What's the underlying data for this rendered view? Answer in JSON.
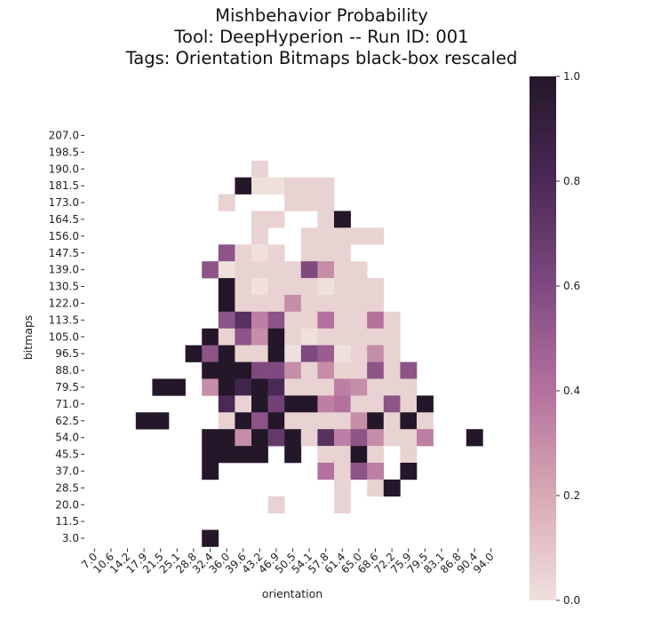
{
  "chart_data": {
    "type": "heatmap",
    "title": [
      "Mishbehavior Probability",
      "Tool: DeepHyperion -- Run ID: 001",
      "Tags: Orientation Bitmaps black-box rescaled"
    ],
    "xlabel": "orientation",
    "ylabel": "bitmaps",
    "x_ticks": [
      "7.0",
      "10.6",
      "14.2",
      "17.9",
      "21.5",
      "25.1",
      "28.8",
      "32.4",
      "36.0",
      "39.6",
      "43.2",
      "46.9",
      "50.5",
      "54.1",
      "57.8",
      "61.4",
      "65.0",
      "68.6",
      "72.2",
      "75.9",
      "79.5",
      "83.1",
      "86.8",
      "90.4",
      "94.0"
    ],
    "y_ticks": [
      "207.0",
      "198.5",
      "190.0",
      "181.5",
      "173.0",
      "164.5",
      "156.0",
      "147.5",
      "139.0",
      "130.5",
      "122.0",
      "113.5",
      "105.0",
      "96.5",
      "88.0",
      "79.5",
      "71.0",
      "62.5",
      "54.0",
      "45.5",
      "37.0",
      "28.5",
      "20.0",
      "11.5",
      "3.0"
    ],
    "colorbar": {
      "min": 0.0,
      "max": 1.0,
      "ticks": [
        0.0,
        0.2,
        0.4,
        0.6,
        0.8,
        1.0
      ],
      "tick_labels": [
        "0.0",
        "0.2",
        "0.4",
        "0.6",
        "0.8",
        "1.0"
      ],
      "colors": [
        "#efe0dc",
        "#d8a9b4",
        "#b4719d",
        "#7e4a80",
        "#4a2a55",
        "#231729"
      ]
    },
    "values": [
      [
        null,
        null,
        null,
        null,
        null,
        null,
        null,
        null,
        null,
        null,
        null,
        null,
        null,
        null,
        null,
        null,
        null,
        null,
        null,
        null,
        null,
        null,
        null,
        null,
        null
      ],
      [
        null,
        null,
        null,
        null,
        null,
        null,
        null,
        null,
        null,
        null,
        null,
        null,
        null,
        null,
        null,
        null,
        null,
        null,
        null,
        null,
        null,
        null,
        null,
        null,
        null
      ],
      [
        null,
        null,
        null,
        null,
        null,
        null,
        null,
        null,
        null,
        null,
        0.05,
        null,
        null,
        null,
        null,
        null,
        null,
        null,
        null,
        null,
        null,
        null,
        null,
        null,
        null
      ],
      [
        null,
        null,
        null,
        null,
        null,
        null,
        null,
        null,
        null,
        1.0,
        0.0,
        0.0,
        0.05,
        0.05,
        0.05,
        null,
        null,
        null,
        null,
        null,
        null,
        null,
        null,
        null,
        null
      ],
      [
        null,
        null,
        null,
        null,
        null,
        null,
        null,
        null,
        0.05,
        null,
        null,
        null,
        0.05,
        0.05,
        0.05,
        null,
        null,
        null,
        null,
        null,
        null,
        null,
        null,
        null,
        null
      ],
      [
        null,
        null,
        null,
        null,
        null,
        null,
        null,
        null,
        null,
        null,
        0.05,
        0.05,
        null,
        null,
        0.05,
        1.0,
        null,
        null,
        null,
        null,
        null,
        null,
        null,
        null,
        null
      ],
      [
        null,
        null,
        null,
        null,
        null,
        null,
        null,
        null,
        null,
        null,
        0.05,
        null,
        null,
        0.05,
        0.05,
        0.05,
        0.05,
        0.05,
        null,
        null,
        null,
        null,
        null,
        null,
        null
      ],
      [
        null,
        null,
        null,
        null,
        null,
        null,
        null,
        null,
        0.55,
        0.05,
        0.0,
        0.05,
        null,
        0.05,
        0.05,
        0.05,
        null,
        null,
        null,
        null,
        null,
        null,
        null,
        null,
        null
      ],
      [
        null,
        null,
        null,
        null,
        null,
        null,
        null,
        0.55,
        0.0,
        0.05,
        0.05,
        0.05,
        0.05,
        0.6,
        0.3,
        0.05,
        0.05,
        null,
        null,
        null,
        null,
        null,
        null,
        null,
        null
      ],
      [
        null,
        null,
        null,
        null,
        null,
        null,
        null,
        null,
        1.0,
        0.05,
        0.0,
        0.05,
        0.05,
        0.05,
        0.0,
        0.05,
        0.05,
        0.05,
        null,
        null,
        null,
        null,
        null,
        null,
        null
      ],
      [
        null,
        null,
        null,
        null,
        null,
        null,
        null,
        null,
        1.0,
        0.05,
        0.05,
        0.05,
        0.3,
        0.05,
        0.05,
        0.05,
        0.05,
        0.05,
        null,
        null,
        null,
        null,
        null,
        null,
        null
      ],
      [
        null,
        null,
        null,
        null,
        null,
        null,
        null,
        null,
        0.55,
        0.75,
        0.35,
        0.55,
        0.05,
        0.05,
        0.4,
        0.05,
        0.05,
        0.4,
        0.05,
        null,
        null,
        null,
        null,
        null,
        null
      ],
      [
        null,
        null,
        null,
        null,
        null,
        null,
        null,
        1.0,
        0.05,
        0.55,
        0.3,
        1.0,
        0.05,
        0.0,
        0.05,
        0.05,
        0.05,
        0.05,
        0.05,
        null,
        null,
        null,
        null,
        null,
        null
      ],
      [
        null,
        null,
        null,
        null,
        null,
        null,
        1.0,
        0.55,
        1.0,
        0.05,
        0.05,
        1.0,
        0.0,
        0.6,
        0.5,
        0.0,
        0.05,
        0.3,
        0.05,
        null,
        null,
        null,
        null,
        null,
        null
      ],
      [
        null,
        null,
        null,
        null,
        null,
        null,
        null,
        1.0,
        1.0,
        1.0,
        0.6,
        0.6,
        0.3,
        0.05,
        0.3,
        0.05,
        0.05,
        0.55,
        0.05,
        0.55,
        null,
        null,
        null,
        null,
        null
      ],
      [
        null,
        null,
        null,
        null,
        1.0,
        1.0,
        null,
        0.3,
        1.0,
        0.85,
        1.0,
        0.8,
        0.05,
        0.05,
        0.05,
        0.35,
        0.3,
        0.05,
        0.05,
        0.05,
        null,
        null,
        null,
        null,
        null
      ],
      [
        null,
        null,
        null,
        null,
        null,
        null,
        null,
        null,
        0.8,
        0.05,
        1.0,
        0.65,
        1.0,
        1.0,
        0.35,
        0.4,
        0.05,
        0.05,
        0.55,
        0.05,
        1.0,
        null,
        null,
        null,
        null
      ],
      [
        null,
        null,
        null,
        1.0,
        1.0,
        null,
        null,
        null,
        0.05,
        1.0,
        0.55,
        1.0,
        0.05,
        0.05,
        0.05,
        0.05,
        0.3,
        1.0,
        0.05,
        1.0,
        0.05,
        null,
        null,
        null,
        null
      ],
      [
        null,
        null,
        null,
        null,
        null,
        null,
        null,
        1.0,
        1.0,
        0.3,
        1.0,
        0.7,
        1.0,
        0.05,
        0.75,
        0.35,
        0.55,
        0.3,
        0.05,
        0.05,
        0.35,
        null,
        null,
        1.0,
        null
      ],
      [
        null,
        null,
        null,
        null,
        null,
        null,
        null,
        1.0,
        1.0,
        1.0,
        1.0,
        null,
        1.0,
        null,
        0.05,
        0.05,
        1.0,
        0.05,
        null,
        0.05,
        null,
        null,
        null,
        null,
        null
      ],
      [
        null,
        null,
        null,
        null,
        null,
        null,
        null,
        1.0,
        null,
        null,
        null,
        null,
        null,
        null,
        0.4,
        0.05,
        0.55,
        0.35,
        null,
        1.0,
        null,
        null,
        null,
        null,
        null
      ],
      [
        null,
        null,
        null,
        null,
        null,
        null,
        null,
        null,
        null,
        null,
        null,
        null,
        null,
        null,
        null,
        0.05,
        null,
        0.05,
        1.0,
        null,
        null,
        null,
        null,
        null,
        null
      ],
      [
        null,
        null,
        null,
        null,
        null,
        null,
        null,
        null,
        null,
        null,
        null,
        0.05,
        null,
        null,
        null,
        0.05,
        null,
        null,
        null,
        null,
        null,
        null,
        null,
        null,
        null
      ],
      [
        null,
        null,
        null,
        null,
        null,
        null,
        null,
        null,
        null,
        null,
        null,
        null,
        null,
        null,
        null,
        null,
        null,
        null,
        null,
        null,
        null,
        null,
        null,
        null,
        null
      ],
      [
        null,
        null,
        null,
        null,
        null,
        null,
        null,
        1.0,
        null,
        null,
        null,
        null,
        null,
        null,
        null,
        null,
        null,
        null,
        null,
        null,
        null,
        null,
        null,
        null,
        null
      ]
    ]
  }
}
